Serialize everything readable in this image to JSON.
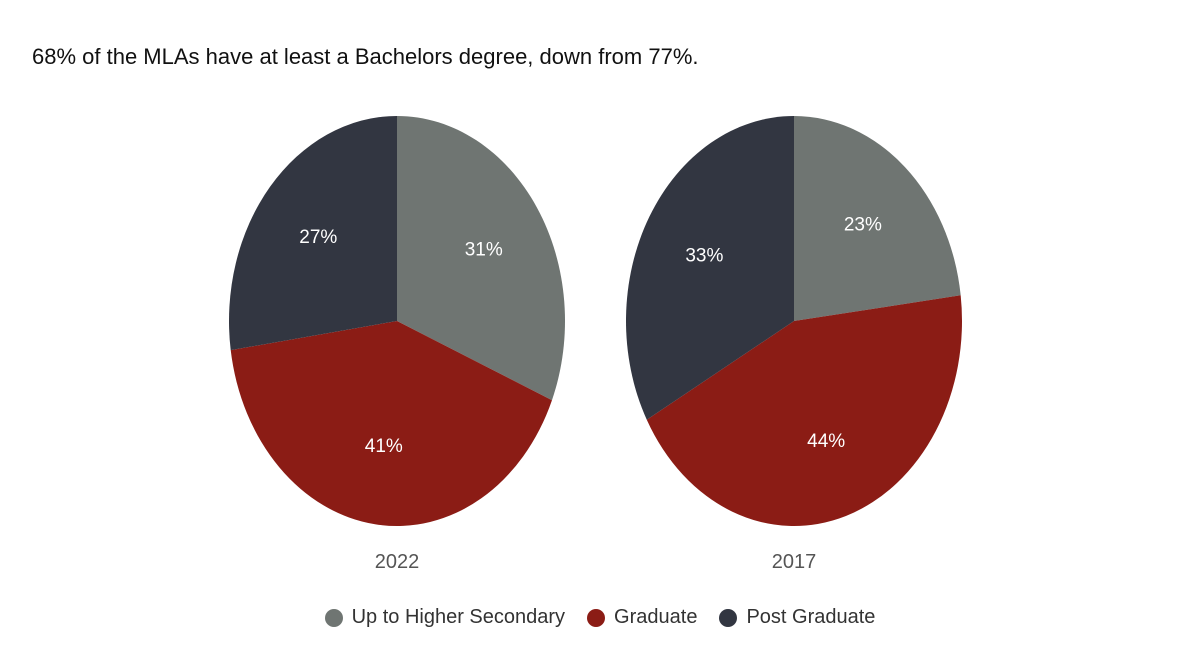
{
  "colors": {
    "up_to_higher_secondary": "#6f7572",
    "graduate": "#8b1c15",
    "post_graduate": "#323641"
  },
  "chart_data": {
    "type": "pie",
    "title": "68% of the MLAs have at least a Bachelors degree, down from 77%.",
    "legend_position": "bottom-center",
    "categories": [
      "Up to Higher Secondary",
      "Graduate",
      "Post Graduate"
    ],
    "pies": [
      {
        "name": "2022",
        "values": [
          31,
          41,
          27
        ],
        "labels": [
          "31%",
          "41%",
          "27%"
        ]
      },
      {
        "name": "2017",
        "values": [
          23,
          44,
          33
        ],
        "labels": [
          "23%",
          "44%",
          "33%"
        ]
      }
    ]
  }
}
